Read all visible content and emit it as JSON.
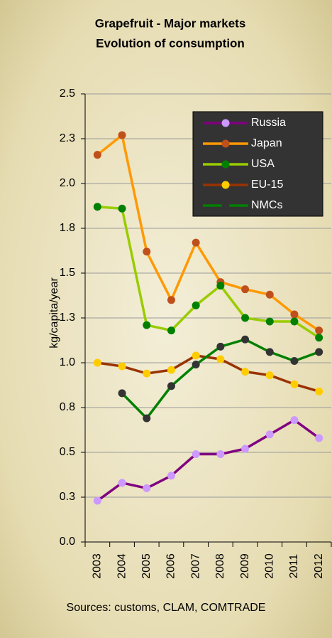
{
  "chart_data": {
    "type": "line",
    "title": "Grapefruit - Major markets",
    "subtitle": "Evolution of consumption",
    "y_label": "kg/capita/year",
    "source": "Sources: customs, CLAM, COMTRADE",
    "categories": [
      "2003",
      "2004",
      "2005",
      "2006",
      "2007",
      "2008",
      "2009",
      "2010",
      "2011",
      "2012"
    ],
    "series": [
      {
        "name": "Russia",
        "color": "#800080",
        "marker_color": "#cc99ff",
        "values": [
          0.23,
          0.33,
          0.3,
          0.37,
          0.49,
          0.49,
          0.52,
          0.6,
          0.68,
          0.58
        ]
      },
      {
        "name": "Japan",
        "color": "#ff9900",
        "marker_color": "#c0501b",
        "values": [
          2.16,
          2.27,
          1.62,
          1.35,
          1.67,
          1.45,
          1.41,
          1.38,
          1.27,
          1.18
        ]
      },
      {
        "name": "USA",
        "color": "#99cc00",
        "marker_color": "#008000",
        "values": [
          1.87,
          1.86,
          1.21,
          1.18,
          1.32,
          1.43,
          1.25,
          1.23,
          1.23,
          1.14
        ]
      },
      {
        "name": "EU-15",
        "color": "#993300",
        "marker_color": "#ffcc00",
        "values": [
          1.0,
          0.98,
          0.94,
          0.96,
          1.04,
          1.02,
          0.95,
          0.93,
          0.88,
          0.84
        ]
      },
      {
        "name": "NMCs",
        "color": "#008000",
        "marker_color": "#333333",
        "values": [
          null,
          0.83,
          0.69,
          0.87,
          0.99,
          1.09,
          1.13,
          1.06,
          1.01,
          1.06
        ]
      }
    ],
    "ylim": [
      0,
      2.5
    ],
    "yticks": [
      {
        "value": 0,
        "label": "0.0"
      },
      {
        "value": 0.25,
        "label": "0.3"
      },
      {
        "value": 0.5,
        "label": "0.5"
      },
      {
        "value": 0.75,
        "label": "0.8"
      },
      {
        "value": 1,
        "label": "1.0"
      },
      {
        "value": 1.25,
        "label": "1.3"
      },
      {
        "value": 1.5,
        "label": "1.5"
      },
      {
        "value": 1.75,
        "label": "1.8"
      },
      {
        "value": 2,
        "label": "2.0"
      },
      {
        "value": 2.25,
        "label": "2.3"
      },
      {
        "value": 2.5,
        "label": "2.5"
      }
    ],
    "grid": true,
    "legend": "upper right"
  }
}
